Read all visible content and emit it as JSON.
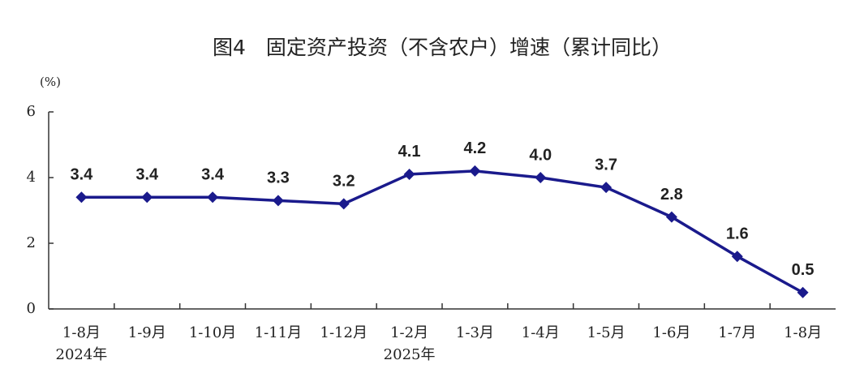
{
  "chart_data": {
    "type": "line",
    "title": "图4　固定资产投资（不含农户）增速（累计同比）",
    "y_label": "(%)",
    "categories": [
      "1-8月",
      "1-9月",
      "1-10月",
      "1-11月",
      "1-12月",
      "1-2月",
      "1-3月",
      "1-4月",
      "1-5月",
      "1-6月",
      "1-7月",
      "1-8月"
    ],
    "category_groups": [
      "2024年",
      null,
      null,
      null,
      null,
      "2025年",
      null,
      null,
      null,
      null,
      null,
      null
    ],
    "series": [
      {
        "color": "#1a1a8c",
        "values": [
          3.4,
          3.4,
          3.4,
          3.3,
          3.2,
          4.1,
          4.2,
          4.0,
          3.7,
          2.8,
          1.6,
          0.5
        ],
        "value_labels": [
          "3.4",
          "3.4",
          "3.4",
          "3.3",
          "3.2",
          "4.1",
          "4.2",
          "4.0",
          "3.7",
          "2.8",
          "1.6",
          "0.5"
        ]
      }
    ],
    "ylim": [
      0,
      6
    ],
    "yticks": [
      0,
      2,
      4,
      6
    ],
    "grid": false
  }
}
